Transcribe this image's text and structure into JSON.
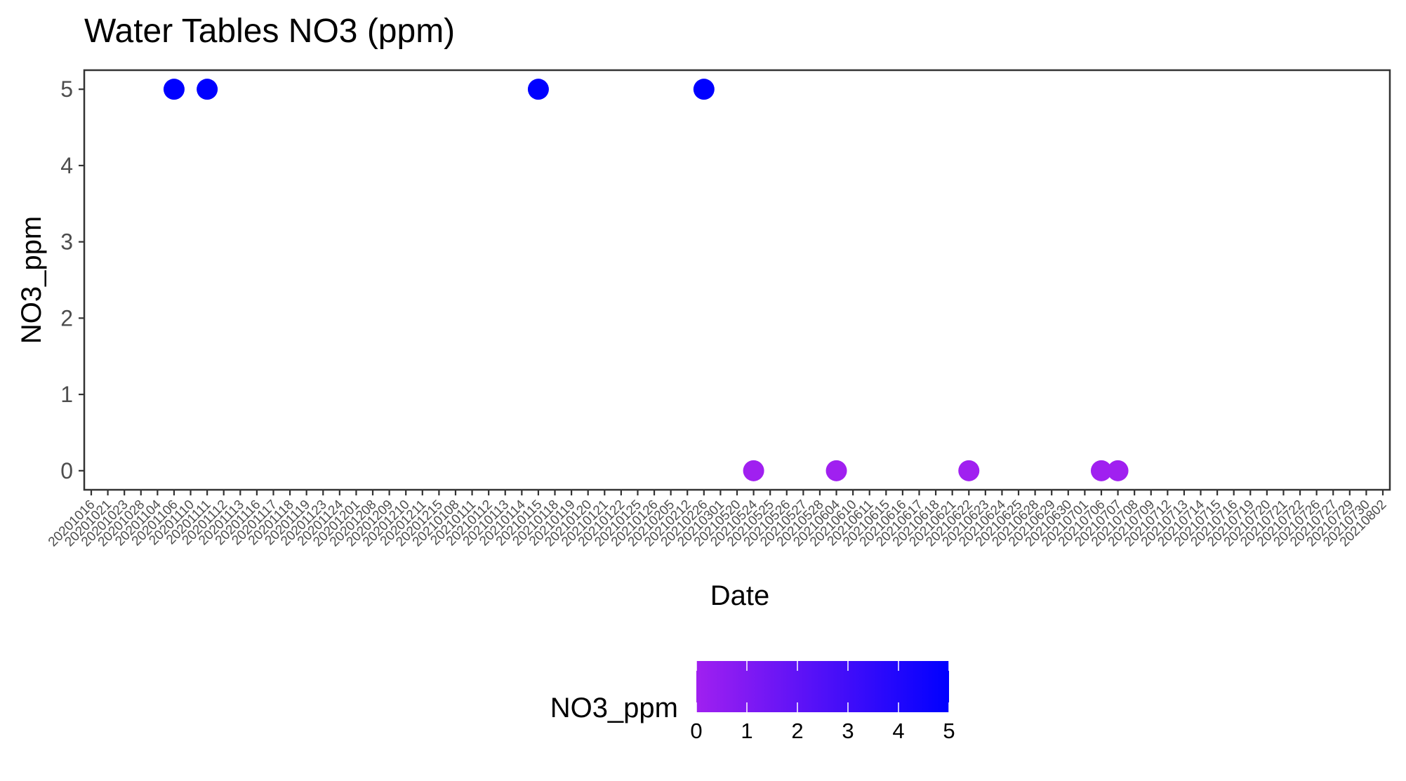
{
  "chart_data": {
    "type": "scatter",
    "title": "Water Tables NO3 (ppm)",
    "xlabel": "Date",
    "ylabel": "NO3_ppm",
    "x_scale": "discrete",
    "categories": [
      "20201016",
      "20201021",
      "20201023",
      "20201028",
      "20201104",
      "20201106",
      "20201110",
      "20201111",
      "20201112",
      "20201113",
      "20201116",
      "20201117",
      "20201118",
      "20201119",
      "20201123",
      "20201124",
      "20201201",
      "20201208",
      "20201209",
      "20201210",
      "20201211",
      "20201215",
      "20210108",
      "20210111",
      "20210112",
      "20210113",
      "20210114",
      "20210115",
      "20210118",
      "20210119",
      "20210120",
      "20210121",
      "20210122",
      "20210125",
      "20210126",
      "20210205",
      "20210212",
      "20210226",
      "20210301",
      "20210520",
      "20210524",
      "20210525",
      "20210526",
      "20210527",
      "20210528",
      "20210604",
      "20210610",
      "20210611",
      "20210615",
      "20210616",
      "20210617",
      "20210618",
      "20210621",
      "20210622",
      "20210623",
      "20210624",
      "20210625",
      "20210628",
      "20210629",
      "20210630",
      "20210701",
      "20210706",
      "20210707",
      "20210708",
      "20210709",
      "20210712",
      "20210713",
      "20210714",
      "20210715",
      "20210716",
      "20210719",
      "20210720",
      "20210721",
      "20210722",
      "20210726",
      "20210727",
      "20210729",
      "20210730",
      "20210802"
    ],
    "points": [
      {
        "x": "20201106",
        "y": 5
      },
      {
        "x": "20201111",
        "y": 5
      },
      {
        "x": "20210115",
        "y": 5
      },
      {
        "x": "20210226",
        "y": 5
      },
      {
        "x": "20210524",
        "y": 0
      },
      {
        "x": "20210604",
        "y": 0
      },
      {
        "x": "20210622",
        "y": 0
      },
      {
        "x": "20210706",
        "y": 0
      },
      {
        "x": "20210707",
        "y": 0
      }
    ],
    "ylim": [
      -0.25,
      5.25
    ],
    "yticks": [
      "0",
      "1",
      "2",
      "3",
      "4",
      "5"
    ],
    "grid": false,
    "legend": {
      "title": "NO3_ppm",
      "placement": "bottom",
      "type": "colorbar",
      "range": [
        0,
        5
      ],
      "ticks": [
        "0",
        "1",
        "2",
        "3",
        "4",
        "5"
      ],
      "color_low": "#A020F0",
      "color_high": "#0000FF"
    }
  }
}
